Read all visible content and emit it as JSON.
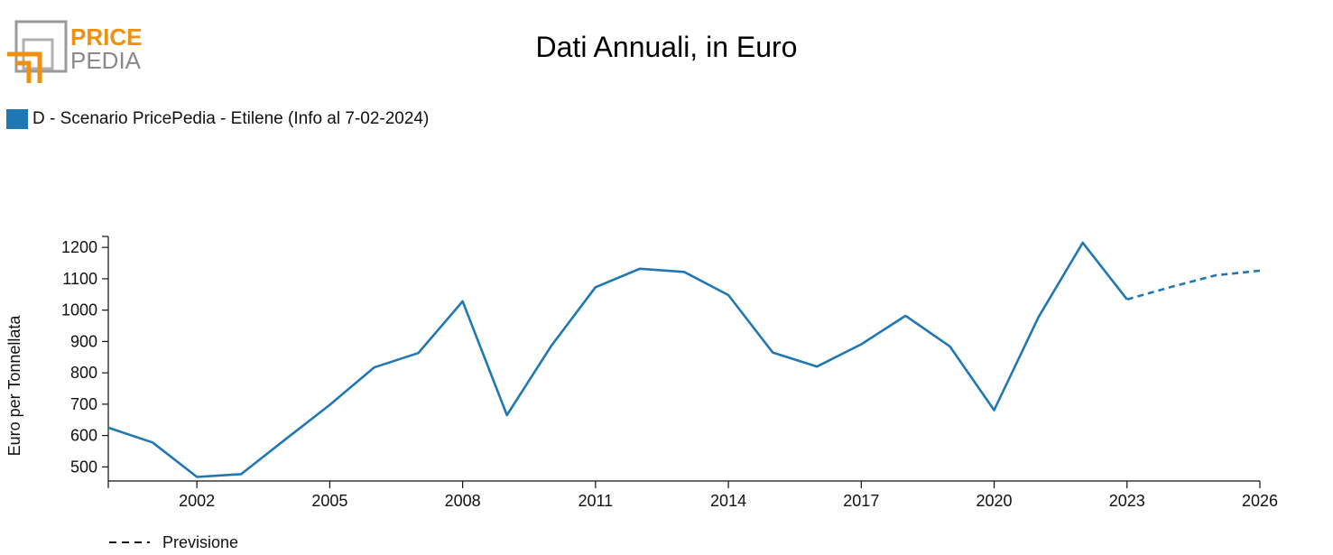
{
  "logo": {
    "line1": "PRICE",
    "line2": "PEDIA"
  },
  "title": "Dati Annuali, in Euro",
  "legend": {
    "label": "D - Scenario PricePedia - Etilene (Info al 7-02-2024)",
    "color": "#1f77b4"
  },
  "forecast_label": "Previsione",
  "chart_data": {
    "type": "line",
    "title": "Dati Annuali, in Euro",
    "ylabel": "Euro per Tonnellata",
    "xlabel": "",
    "xlim": [
      2000,
      2026
    ],
    "ylim": [
      455,
      1235
    ],
    "x_ticks": [
      2002,
      2005,
      2008,
      2011,
      2014,
      2017,
      2020,
      2023,
      2026
    ],
    "y_ticks": [
      500,
      600,
      700,
      800,
      900,
      1000,
      1100,
      1200
    ],
    "grid": false,
    "series": [
      {
        "name": "D - Scenario PricePedia - Etilene (Info al 7-02-2024)",
        "color": "#1f77b4",
        "style": "solid",
        "x": [
          2000,
          2001,
          2002,
          2003,
          2004,
          2005,
          2006,
          2007,
          2008,
          2009,
          2010,
          2011,
          2012,
          2013,
          2014,
          2015,
          2016,
          2017,
          2018,
          2019,
          2020,
          2021,
          2022,
          2023
        ],
        "y": [
          625,
          578,
          468,
          477,
          588,
          698,
          817,
          863,
          1028,
          665,
          886,
          1073,
          1132,
          1122,
          1048,
          865,
          820,
          891,
          982,
          884,
          681,
          977,
          1215,
          1034
        ]
      },
      {
        "name": "Previsione",
        "color": "#1f77b4",
        "style": "dashed",
        "x": [
          2023,
          2024,
          2025,
          2026
        ],
        "y": [
          1034,
          1074,
          1111,
          1126
        ]
      }
    ]
  }
}
